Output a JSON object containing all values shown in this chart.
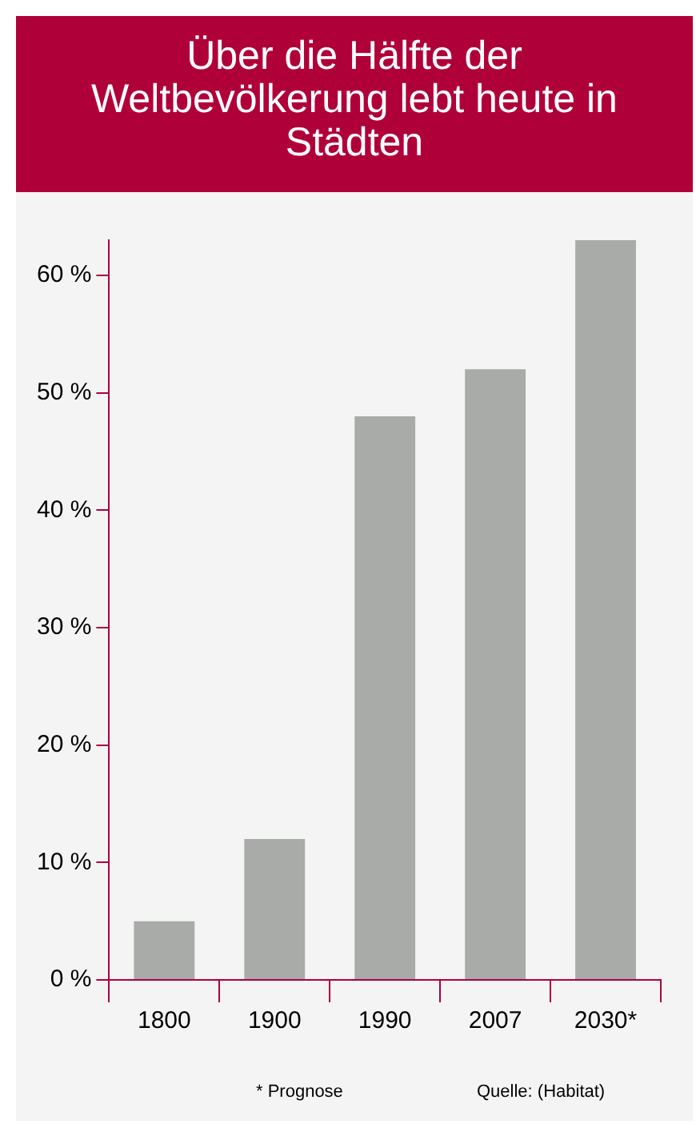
{
  "chart_data": {
    "type": "bar",
    "title": "Über die Hälfte der Weltbevölkerung lebt heute in Städten",
    "categories": [
      "1800",
      "1900",
      "1990",
      "2007",
      "2030*"
    ],
    "values": [
      5,
      12,
      48,
      52,
      63
    ],
    "color": "#a9aba9",
    "ylim": [
      0,
      63
    ],
    "yticks": [
      {
        "value": 0,
        "label": "0 %"
      },
      {
        "value": 10,
        "label": "10 %"
      },
      {
        "value": 20,
        "label": "20 %"
      },
      {
        "value": 30,
        "label": "30 %"
      },
      {
        "value": 40,
        "label": "40 %"
      },
      {
        "value": 50,
        "label": "50 %"
      },
      {
        "value": 60,
        "label": "60 %"
      }
    ],
    "annotations": [
      "* Prognose",
      "Quelle: (Habitat)"
    ]
  }
}
